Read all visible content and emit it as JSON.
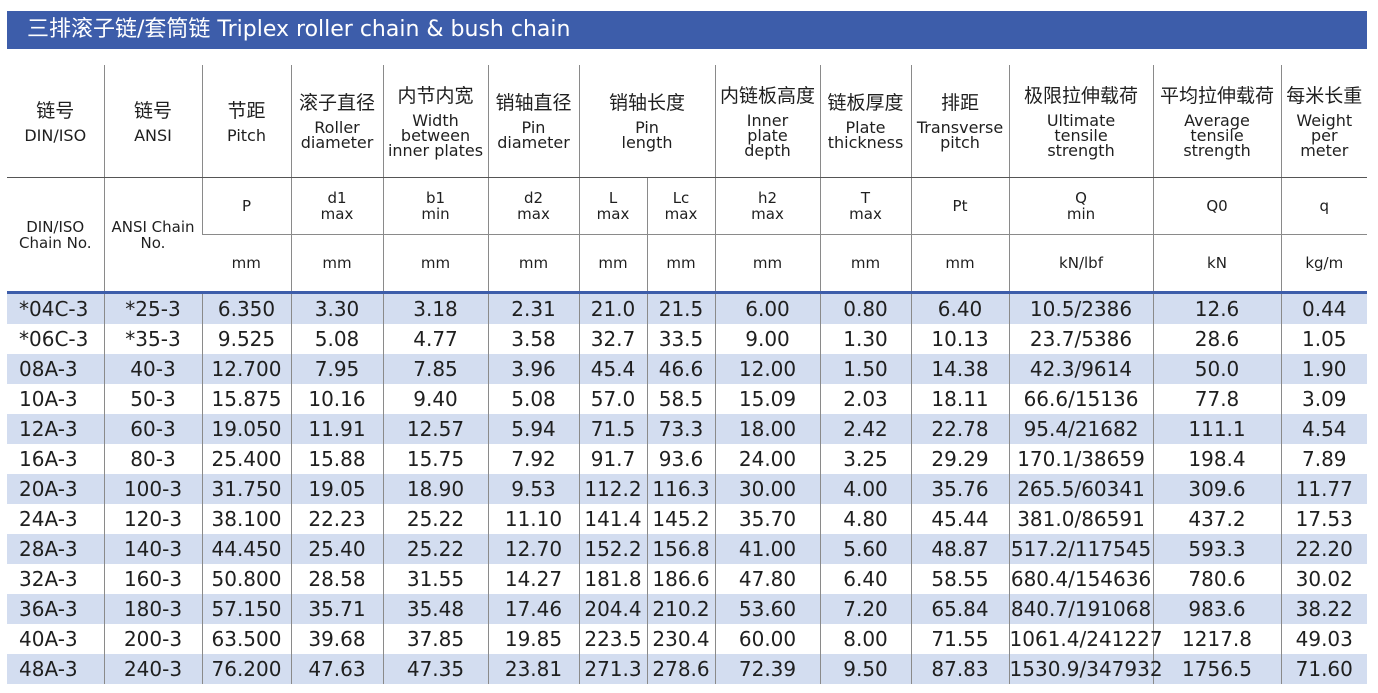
{
  "title": "三排滚子链/套筒链  Triplex roller chain & bush chain",
  "headers": {
    "din": {
      "cn": "链号",
      "en": "DIN/ISO",
      "sub": "DIN/ISO Chain No."
    },
    "ansi": {
      "cn": "链号",
      "en": "ANSI",
      "sub": "ANSI Chain No."
    },
    "pitch": {
      "cn": "节距",
      "en": "Pitch",
      "sym": "P",
      "unit": "mm"
    },
    "roller": {
      "cn": "滚子直径",
      "en1": "Roller",
      "en2": "diameter",
      "sym": "d1",
      "lim": "max",
      "unit": "mm"
    },
    "width": {
      "cn": "内节内宽",
      "en1": "Width",
      "en2": "between",
      "en3": "inner plates",
      "sym": "b1",
      "lim": "min",
      "unit": "mm"
    },
    "pin_d": {
      "cn": "销轴直径",
      "en1": "Pin",
      "en2": "diameter",
      "sym": "d2",
      "lim": "max",
      "unit": "mm"
    },
    "pin_l": {
      "cn": "销轴长度",
      "en1": "Pin",
      "en2": "length",
      "sym_l": "L",
      "sym_lc": "Lc",
      "lim": "max",
      "unit": "mm"
    },
    "inner": {
      "cn": "内链板高度",
      "en1": "Inner",
      "en2": "plate",
      "en3": "depth",
      "sym": "h2",
      "lim": "max",
      "unit": "mm"
    },
    "plate": {
      "cn": "链板厚度",
      "en1": "Plate",
      "en2": "thickness",
      "sym": "T",
      "lim": "max",
      "unit": "mm"
    },
    "transverse": {
      "cn": "排距",
      "en1": "Transverse",
      "en2": "pitch",
      "sym": "Pt",
      "unit": "mm"
    },
    "ultimate": {
      "cn": "极限拉伸载荷",
      "en1": "Ultimate",
      "en2": "tensile",
      "en3": "strength",
      "sym": "Q",
      "lim": "min",
      "unit": "kN/lbf"
    },
    "average": {
      "cn": "平均拉伸载荷",
      "en1": "Average",
      "en2": "tensile",
      "en3": "strength",
      "sym": "Q0",
      "unit": "kN"
    },
    "weight": {
      "cn": "每米长重",
      "en1": "Weight",
      "en2": "per",
      "en3": "meter",
      "sym": "q",
      "unit": "kg/m"
    }
  },
  "rows": [
    [
      "*04C-3",
      "*25-3",
      "6.350",
      "3.30",
      "3.18",
      "2.31",
      "21.0",
      "21.5",
      "6.00",
      "0.80",
      "6.40",
      "10.5/2386",
      "12.6",
      "0.44"
    ],
    [
      "*06C-3",
      "*35-3",
      "9.525",
      "5.08",
      "4.77",
      "3.58",
      "32.7",
      "33.5",
      "9.00",
      "1.30",
      "10.13",
      "23.7/5386",
      "28.6",
      "1.05"
    ],
    [
      "08A-3",
      "40-3",
      "12.700",
      "7.95",
      "7.85",
      "3.96",
      "45.4",
      "46.6",
      "12.00",
      "1.50",
      "14.38",
      "42.3/9614",
      "50.0",
      "1.90"
    ],
    [
      "10A-3",
      "50-3",
      "15.875",
      "10.16",
      "9.40",
      "5.08",
      "57.0",
      "58.5",
      "15.09",
      "2.03",
      "18.11",
      "66.6/15136",
      "77.8",
      "3.09"
    ],
    [
      "12A-3",
      "60-3",
      "19.050",
      "11.91",
      "12.57",
      "5.94",
      "71.5",
      "73.3",
      "18.00",
      "2.42",
      "22.78",
      "95.4/21682",
      "111.1",
      "4.54"
    ],
    [
      "16A-3",
      "80-3",
      "25.400",
      "15.88",
      "15.75",
      "7.92",
      "91.7",
      "93.6",
      "24.00",
      "3.25",
      "29.29",
      "170.1/38659",
      "198.4",
      "7.89"
    ],
    [
      "20A-3",
      "100-3",
      "31.750",
      "19.05",
      "18.90",
      "9.53",
      "112.2",
      "116.3",
      "30.00",
      "4.00",
      "35.76",
      "265.5/60341",
      "309.6",
      "11.77"
    ],
    [
      "24A-3",
      "120-3",
      "38.100",
      "22.23",
      "25.22",
      "11.10",
      "141.4",
      "145.2",
      "35.70",
      "4.80",
      "45.44",
      "381.0/86591",
      "437.2",
      "17.53"
    ],
    [
      "28A-3",
      "140-3",
      "44.450",
      "25.40",
      "25.22",
      "12.70",
      "152.2",
      "156.8",
      "41.00",
      "5.60",
      "48.87",
      "517.2/117545",
      "593.3",
      "22.20"
    ],
    [
      "32A-3",
      "160-3",
      "50.800",
      "28.58",
      "31.55",
      "14.27",
      "181.8",
      "186.6",
      "47.80",
      "6.40",
      "58.55",
      "680.4/154636",
      "780.6",
      "30.02"
    ],
    [
      "36A-3",
      "180-3",
      "57.150",
      "35.71",
      "35.48",
      "17.46",
      "204.4",
      "210.2",
      "53.60",
      "7.20",
      "65.84",
      "840.7/191068",
      "983.6",
      "38.22"
    ],
    [
      "40A-3",
      "200-3",
      "63.500",
      "39.68",
      "37.85",
      "19.85",
      "223.5",
      "230.4",
      "60.00",
      "8.00",
      "71.55",
      "1061.4/241227",
      "1217.8",
      "49.03"
    ],
    [
      "48A-3",
      "240-3",
      "76.200",
      "47.63",
      "47.35",
      "23.81",
      "271.3",
      "278.6",
      "72.39",
      "9.50",
      "87.83",
      "1530.9/347932",
      "1756.5",
      "71.60"
    ]
  ]
}
